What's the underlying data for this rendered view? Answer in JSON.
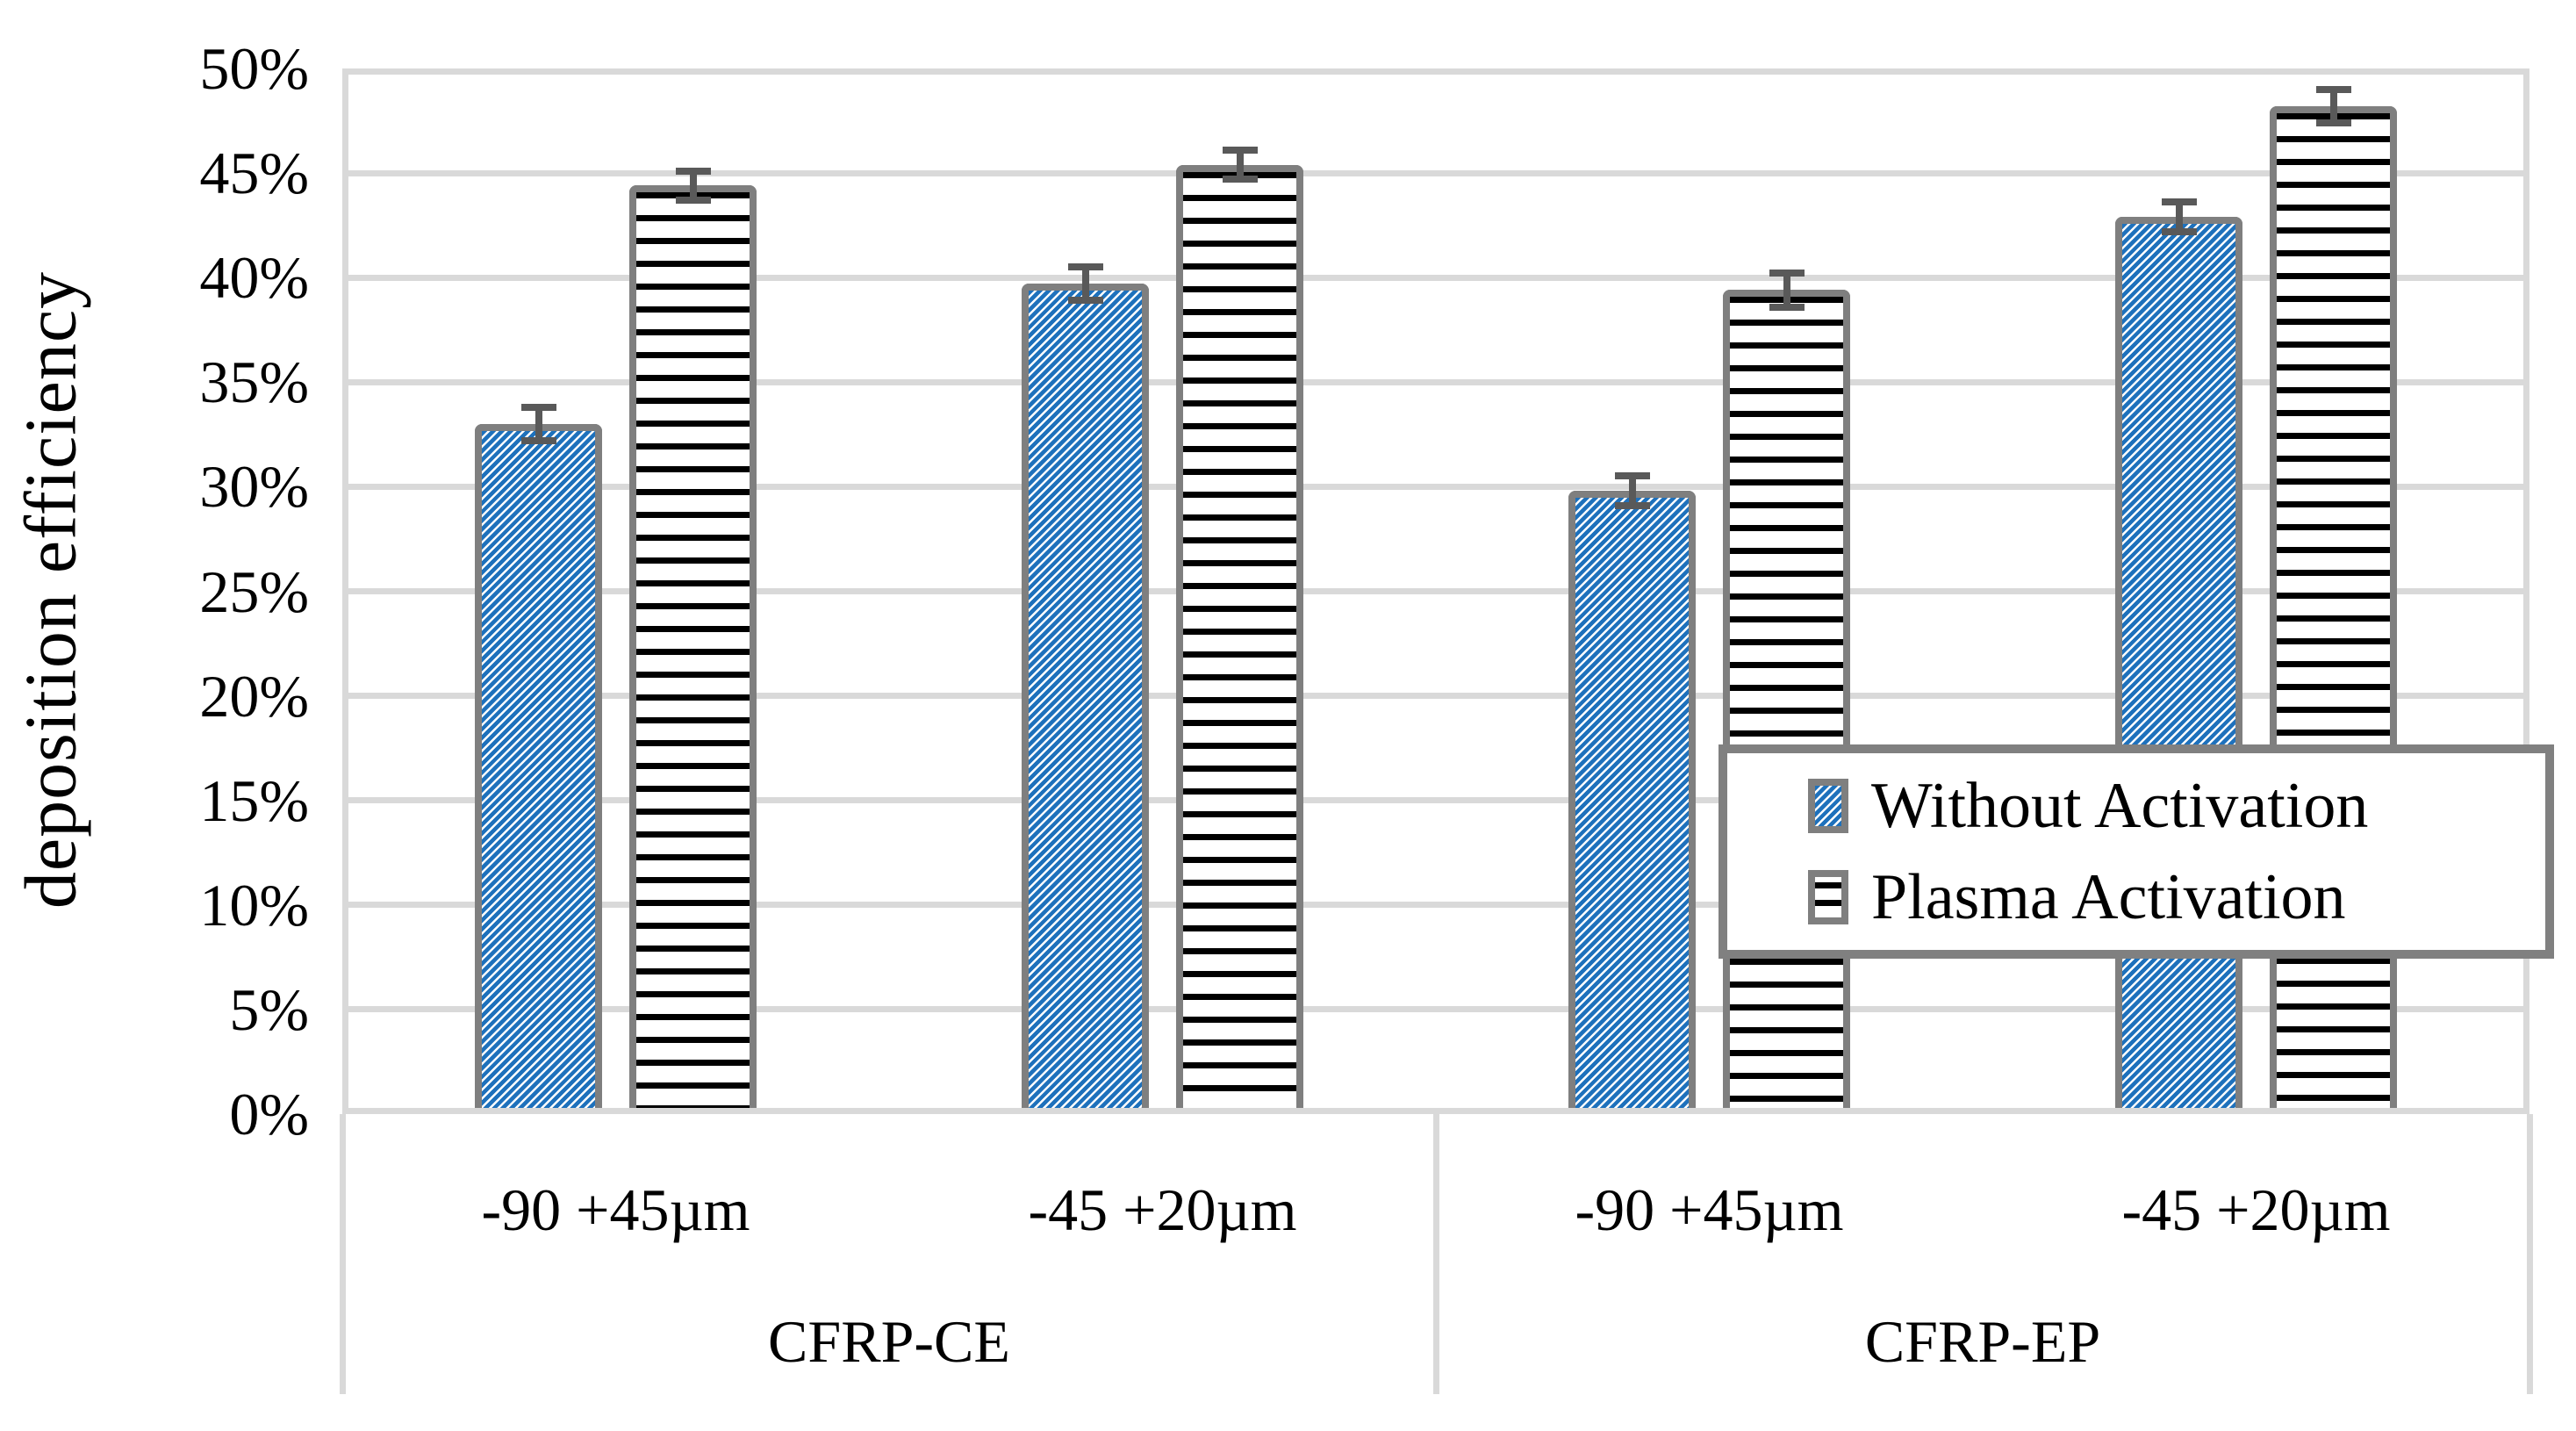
{
  "chart_data": {
    "type": "bar",
    "title": "",
    "ylabel": "deposition efficiency",
    "y_unit": "%",
    "ylim": [
      0,
      50
    ],
    "y_tick_step": 5,
    "y_tick_labels": [
      "0%",
      "5%",
      "10%",
      "15%",
      "20%",
      "25%",
      "30%",
      "35%",
      "40%",
      "45%",
      "50%"
    ],
    "group_labels": [
      "CFRP-CE",
      "CFRP-EP"
    ],
    "size_labels": [
      "-90 +45µm",
      "-45 +20µm"
    ],
    "categories": [
      "CFRP-CE -90 +45µm",
      "CFRP-CE -45 +20µm",
      "CFRP-EP -90 +45µm",
      "CFRP-EP -45 +20µm"
    ],
    "series": [
      {
        "name": "Without Activation",
        "pattern": "blue-diagonal-hatch",
        "color": "#1E71BC",
        "values": [
          33.0,
          39.7,
          29.8,
          42.9
        ],
        "errors": [
          0.8,
          0.8,
          0.7,
          0.7
        ]
      },
      {
        "name": "Plasma Activation",
        "pattern": "black-horizontal-lines",
        "color": "#000000",
        "values": [
          44.4,
          45.4,
          39.4,
          48.2
        ],
        "errors": [
          0.7,
          0.7,
          0.8,
          0.8
        ]
      }
    ],
    "grid": true,
    "legend_position": "overlay-center-right",
    "error_bars": true
  },
  "colors": {
    "hatch_blue": "#1E71BC",
    "bar_border": "#7F7F7F",
    "error_bar": "#595959",
    "gridline": "#D9D9D9",
    "legend_border": "#808080",
    "background": "#FFFFFF",
    "text": "#000000"
  }
}
